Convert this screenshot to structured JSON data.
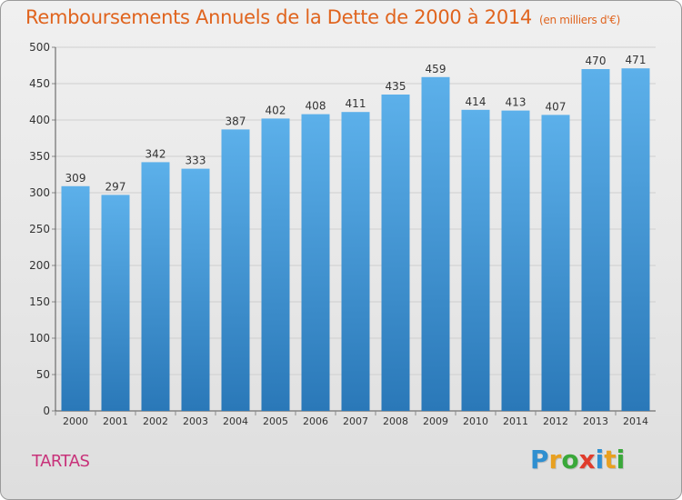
{
  "header": {
    "title": "Remboursements Annuels de la Dette de 2000 à 2014",
    "subtitle": "(en milliers d'€)"
  },
  "footer": {
    "commune": "TARTAS",
    "brand": {
      "text": "Proxiti",
      "letters": [
        {
          "char": "P",
          "color": "#2f8fd0"
        },
        {
          "char": "r",
          "color": "#e8a020"
        },
        {
          "char": "o",
          "color": "#3aa83a"
        },
        {
          "char": "x",
          "color": "#e03c2c"
        },
        {
          "char": "i",
          "color": "#2f8fd0"
        },
        {
          "char": "t",
          "color": "#e8a020"
        },
        {
          "char": "i",
          "color": "#3aa83a"
        }
      ]
    }
  },
  "chart_data": {
    "type": "bar",
    "title": "Remboursements Annuels de la Dette de 2000 à 2014",
    "subtitle": "(en milliers d'€)",
    "categories": [
      "2000",
      "2001",
      "2002",
      "2003",
      "2004",
      "2005",
      "2006",
      "2007",
      "2008",
      "2009",
      "2010",
      "2011",
      "2012",
      "2013",
      "2014"
    ],
    "values": [
      309,
      297,
      342,
      333,
      387,
      402,
      408,
      411,
      435,
      459,
      414,
      413,
      407,
      470,
      471
    ],
    "data_labels": [
      "309",
      "297",
      "342",
      "333",
      "387",
      "402",
      "408",
      "411",
      "435",
      "459",
      "414",
      "413",
      "407",
      "470",
      "471"
    ],
    "ylim": [
      0,
      500
    ],
    "yticks": [
      0,
      50,
      100,
      150,
      200,
      250,
      300,
      350,
      400,
      450,
      500
    ],
    "ytick_labels": [
      "0",
      "50",
      "100",
      "150",
      "200",
      "250",
      "300",
      "350",
      "400",
      "450",
      "500"
    ],
    "xlabel": "",
    "ylabel": "",
    "grid": true,
    "bar_color_top": "#5cb0ea",
    "bar_color_bottom": "#2a78b8"
  }
}
